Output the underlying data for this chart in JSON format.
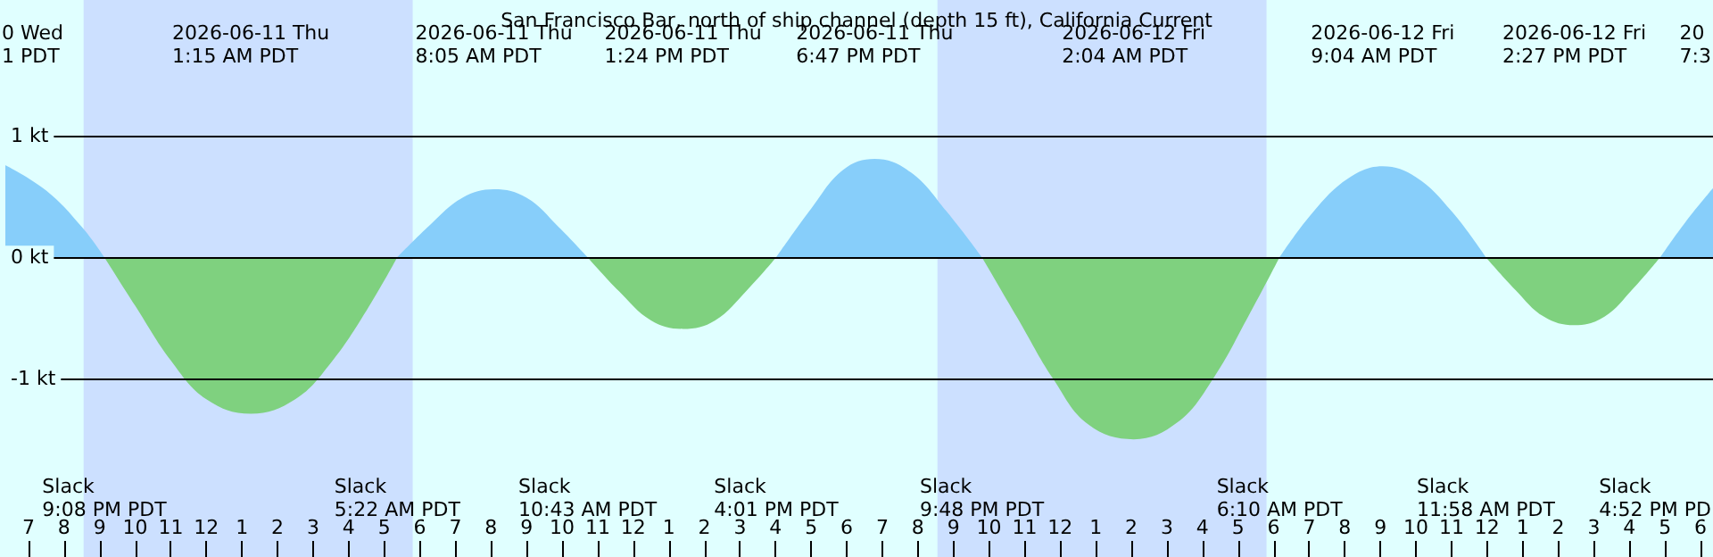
{
  "chart_data": {
    "type": "area",
    "title": "San Francisco Bar, north of ship channel (depth 15 ft), California Current",
    "series": [
      {
        "color": "#87cefa",
        "x": [
          "2026-06-10T18:21",
          "2026-06-10T19:30",
          "2026-06-10T20:30",
          "2026-06-10T21:08"
        ],
        "values": [
          0.76,
          0.55,
          0.25,
          0
        ]
      },
      {
        "color": "#7fd17f",
        "x": [
          "2026-06-10T21:08",
          "2026-06-10T22:00",
          "2026-06-10T23:00",
          "2026-06-11T00:00",
          "2026-06-11T01:15",
          "2026-06-11T02:30",
          "2026-06-11T03:30",
          "2026-06-11T04:30",
          "2026-06-11T05:22"
        ],
        "values": [
          0,
          -0.4,
          -0.85,
          -1.17,
          -1.29,
          -1.17,
          -0.87,
          -0.44,
          0
        ]
      },
      {
        "color": "#87cefa",
        "x": [
          "2026-06-11T05:22",
          "2026-06-11T06:18",
          "2026-06-11T07:12",
          "2026-06-11T08:05",
          "2026-06-11T09:00",
          "2026-06-11T09:54",
          "2026-06-11T10:43"
        ],
        "values": [
          0,
          0.27,
          0.49,
          0.56,
          0.49,
          0.25,
          0
        ]
      },
      {
        "color": "#7fd17f",
        "x": [
          "2026-06-11T10:43",
          "2026-06-11T11:36",
          "2026-06-11T12:30",
          "2026-06-11T13:24",
          "2026-06-11T14:18",
          "2026-06-11T15:12",
          "2026-06-11T16:01"
        ],
        "values": [
          0,
          -0.28,
          -0.52,
          -0.59,
          -0.52,
          -0.27,
          0
        ]
      },
      {
        "color": "#87cefa",
        "x": [
          "2026-06-11T16:01",
          "2026-06-11T17:00",
          "2026-06-11T17:54",
          "2026-06-11T18:47",
          "2026-06-11T19:48",
          "2026-06-11T20:48",
          "2026-06-11T21:48"
        ],
        "values": [
          0,
          0.4,
          0.72,
          0.81,
          0.7,
          0.38,
          0
        ]
      },
      {
        "color": "#7fd17f",
        "x": [
          "2026-06-11T21:48",
          "2026-06-11T22:48",
          "2026-06-11T23:48",
          "2026-06-12T00:48",
          "2026-06-12T02:04",
          "2026-06-12T03:18",
          "2026-06-12T04:18",
          "2026-06-12T05:18",
          "2026-06-12T06:10"
        ],
        "values": [
          0,
          -0.5,
          -1.0,
          -1.38,
          -1.5,
          -1.36,
          -1.0,
          -0.48,
          0
        ]
      },
      {
        "color": "#87cefa",
        "x": [
          "2026-06-12T06:10",
          "2026-06-12T07:06",
          "2026-06-12T08:06",
          "2026-06-12T09:04",
          "2026-06-12T10:00",
          "2026-06-12T11:00",
          "2026-06-12T11:58"
        ],
        "values": [
          0,
          0.37,
          0.65,
          0.75,
          0.66,
          0.38,
          0
        ]
      },
      {
        "color": "#7fd17f",
        "x": [
          "2026-06-12T11:58",
          "2026-06-12T12:48",
          "2026-06-12T13:36",
          "2026-06-12T14:27",
          "2026-06-12T15:18",
          "2026-06-12T16:06",
          "2026-06-12T16:52"
        ],
        "values": [
          0,
          -0.27,
          -0.49,
          -0.56,
          -0.49,
          -0.26,
          0
        ]
      },
      {
        "color": "#87cefa",
        "x": [
          "2026-06-12T16:52",
          "2026-06-12T17:36",
          "2026-06-12T18:21"
        ],
        "values": [
          0,
          0.3,
          0.57
        ]
      }
    ],
    "xlim": [
      "2026-06-10T18:21",
      "2026-06-12T18:21"
    ],
    "xticks": [
      {
        "value": "2026-06-10T19:00",
        "label": "7"
      },
      {
        "value": "2026-06-10T20:00",
        "label": "8"
      },
      {
        "value": "2026-06-10T21:00",
        "label": "9"
      },
      {
        "value": "2026-06-10T22:00",
        "label": "10"
      },
      {
        "value": "2026-06-10T23:00",
        "label": "11"
      },
      {
        "value": "2026-06-11T00:00",
        "label": "12"
      },
      {
        "value": "2026-06-11T01:00",
        "label": "1"
      },
      {
        "value": "2026-06-11T02:00",
        "label": "2"
      },
      {
        "value": "2026-06-11T03:00",
        "label": "3"
      },
      {
        "value": "2026-06-11T04:00",
        "label": "4"
      },
      {
        "value": "2026-06-11T05:00",
        "label": "5"
      },
      {
        "value": "2026-06-11T06:00",
        "label": "6"
      },
      {
        "value": "2026-06-11T07:00",
        "label": "7"
      },
      {
        "value": "2026-06-11T08:00",
        "label": "8"
      },
      {
        "value": "2026-06-11T09:00",
        "label": "9"
      },
      {
        "value": "2026-06-11T10:00",
        "label": "10"
      },
      {
        "value": "2026-06-11T11:00",
        "label": "11"
      },
      {
        "value": "2026-06-11T12:00",
        "label": "12"
      },
      {
        "value": "2026-06-11T13:00",
        "label": "1"
      },
      {
        "value": "2026-06-11T14:00",
        "label": "2"
      },
      {
        "value": "2026-06-11T15:00",
        "label": "3"
      },
      {
        "value": "2026-06-11T16:00",
        "label": "4"
      },
      {
        "value": "2026-06-11T17:00",
        "label": "5"
      },
      {
        "value": "2026-06-11T18:00",
        "label": "6"
      },
      {
        "value": "2026-06-11T19:00",
        "label": "7"
      },
      {
        "value": "2026-06-11T20:00",
        "label": "8"
      },
      {
        "value": "2026-06-11T21:00",
        "label": "9"
      },
      {
        "value": "2026-06-11T22:00",
        "label": "10"
      },
      {
        "value": "2026-06-11T23:00",
        "label": "11"
      },
      {
        "value": "2026-06-12T00:00",
        "label": "12"
      },
      {
        "value": "2026-06-12T01:00",
        "label": "1"
      },
      {
        "value": "2026-06-12T02:00",
        "label": "2"
      },
      {
        "value": "2026-06-12T03:00",
        "label": "3"
      },
      {
        "value": "2026-06-12T04:00",
        "label": "4"
      },
      {
        "value": "2026-06-12T05:00",
        "label": "5"
      },
      {
        "value": "2026-06-12T06:00",
        "label": "6"
      },
      {
        "value": "2026-06-12T07:00",
        "label": "7"
      },
      {
        "value": "2026-06-12T08:00",
        "label": "8"
      },
      {
        "value": "2026-06-12T09:00",
        "label": "9"
      },
      {
        "value": "2026-06-12T10:00",
        "label": "10"
      },
      {
        "value": "2026-06-12T11:00",
        "label": "11"
      },
      {
        "value": "2026-06-12T12:00",
        "label": "12"
      },
      {
        "value": "2026-06-12T13:00",
        "label": "1"
      },
      {
        "value": "2026-06-12T14:00",
        "label": "2"
      },
      {
        "value": "2026-06-12T15:00",
        "label": "3"
      },
      {
        "value": "2026-06-12T16:00",
        "label": "4"
      },
      {
        "value": "2026-06-12T17:00",
        "label": "5"
      },
      {
        "value": "2026-06-12T18:00",
        "label": "6"
      }
    ],
    "ylim": [
      -2.47,
      2.12
    ],
    "yticks": [
      {
        "value": -1,
        "label": "-1 kt"
      },
      {
        "value": 0,
        "label": "0 kt"
      },
      {
        "value": 1,
        "label": "1 kt"
      }
    ],
    "grid": "y",
    "bands": [
      {
        "axis": "x",
        "from": "2026-06-10T20:33",
        "to": "2026-06-11T05:48",
        "color": "#cce0ff"
      },
      {
        "axis": "x",
        "from": "2026-06-11T20:33",
        "to": "2026-06-12T05:48",
        "color": "#cce0ff"
      }
    ],
    "annotations": [
      "0 Wed\n1 PDT",
      "2026-06-11 Thu\n1:15 AM PDT",
      "2026-06-11 Thu\n8:05 AM PDT",
      "2026-06-11 Thu\n1:24 PM PDT",
      "2026-06-11 Thu\n6:47 PM PDT",
      "2026-06-12 Fri\n2:04 AM PDT",
      "2026-06-12 Fri\n9:04 AM PDT",
      "2026-06-12 Fri\n2:27 PM PDT",
      "20\n7:3",
      "Slack\n9:08 PM PDT",
      "Slack\n5:22 AM PDT",
      "Slack\n10:43 AM PDT",
      "Slack\n4:01 PM PDT",
      "Slack\n9:48 PM PDT",
      "Slack\n6:10 AM PDT",
      "Slack\n11:58 AM PDT",
      "Slack\n4:52 PM PD"
    ]
  }
}
